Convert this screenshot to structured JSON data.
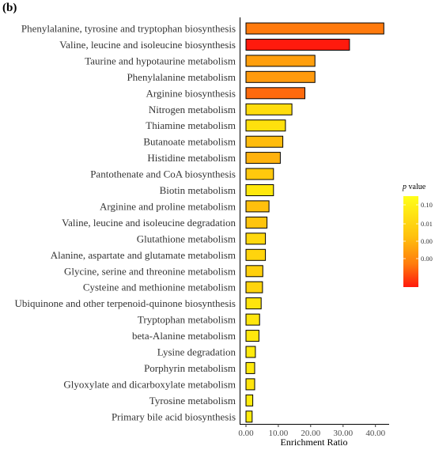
{
  "chart_data": {
    "type": "bar",
    "orientation": "horizontal",
    "panel_label": "(b)",
    "xlabel": "Enrichment Ratio",
    "ylabel": "",
    "xlim": [
      0,
      43.5
    ],
    "xticks": [
      0,
      10,
      20,
      30,
      40
    ],
    "xtick_labels": [
      "0.00",
      "10.00",
      "20.00",
      "30.00",
      "40.00"
    ],
    "categories": [
      "Phenylalanine, tyrosine and tryptophan biosynthesis",
      "Valine, leucine and isoleucine biosynthesis",
      "Taurine and hypotaurine metabolism",
      "Phenylalanine metabolism",
      "Arginine biosynthesis",
      "Nitrogen metabolism",
      "Thiamine metabolism",
      "Butanoate metabolism",
      "Histidine metabolism",
      "Pantothenate and CoA biosynthesis",
      "Biotin metabolism",
      "Arginine and proline metabolism",
      "Valine, leucine and isoleucine degradation",
      "Glutathione metabolism",
      "Alanine, aspartate and glutamate metabolism",
      "Glycine, serine and threonine metabolism",
      "Cysteine and methionine metabolism",
      "Ubiquinone and other terpenoid-quinone biosynthesis",
      "Tryptophan metabolism",
      "beta-Alanine metabolism",
      "Lysine degradation",
      "Porphyrin metabolism",
      "Glyoxylate and dicarboxylate metabolism",
      "Tyrosine metabolism",
      "Primary bile acid biosynthesis"
    ],
    "values": [
      42.6,
      32.0,
      21.3,
      21.3,
      18.2,
      14.2,
      12.2,
      11.4,
      10.6,
      8.5,
      8.5,
      7.1,
      6.5,
      6.0,
      6.0,
      5.2,
      5.1,
      4.7,
      4.2,
      4.0,
      2.9,
      2.7,
      2.7,
      2.1,
      1.9
    ],
    "bar_colors": [
      "#ff7a0d",
      "#ff1a0d",
      "#ff9f0d",
      "#ff9a0d",
      "#ff6a0d",
      "#ffdc0d",
      "#ffe00d",
      "#ffbc0d",
      "#ffb20d",
      "#ffc80d",
      "#ffe80d",
      "#ffc00d",
      "#ffc40d",
      "#ffd80d",
      "#ffd40d",
      "#ffd00d",
      "#ffd40d",
      "#ffe40d",
      "#ffe60d",
      "#ffe80d",
      "#ffea0d",
      "#ffea0d",
      "#ffe40d",
      "#ffec0d",
      "#ffec0d"
    ],
    "color_legend": {
      "title_italic": "p",
      "title_rest": " value",
      "tick_labels": [
        "0.10",
        "0.01",
        "0.00",
        "0.00"
      ],
      "color_top": "#ffff1a",
      "color_bottom": "#ff1a0d"
    }
  }
}
